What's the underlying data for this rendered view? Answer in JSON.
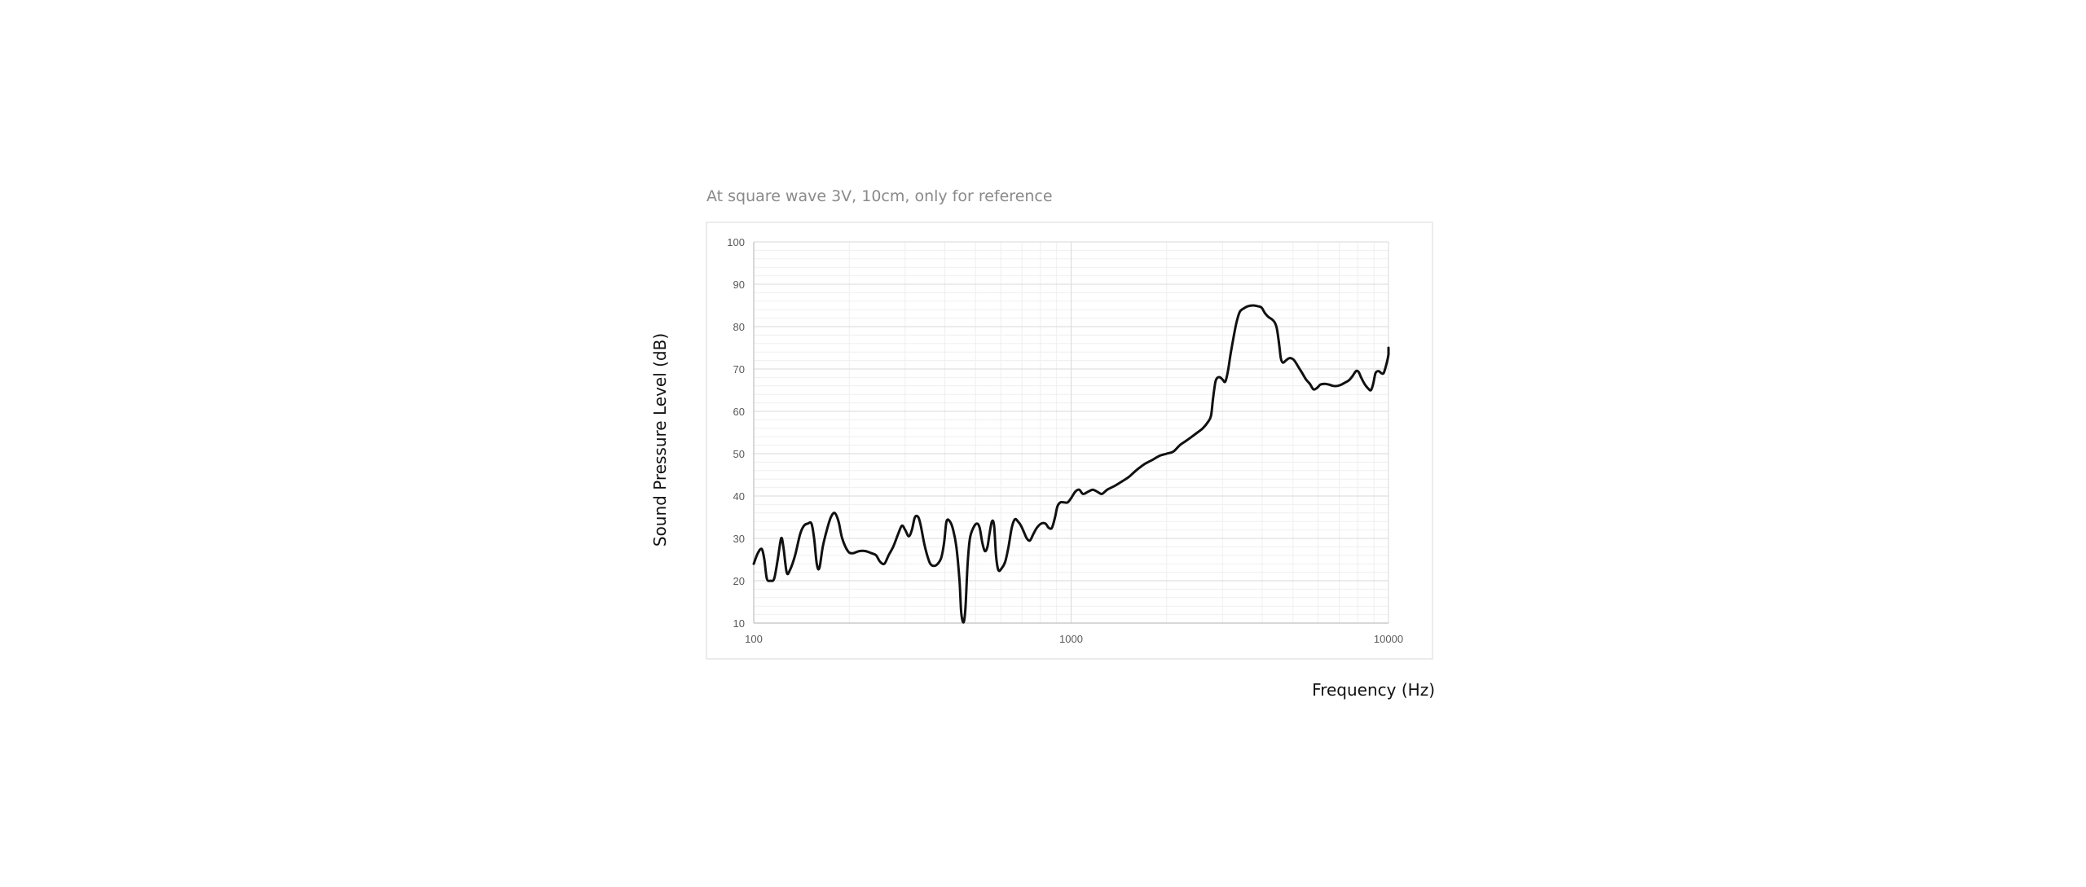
{
  "chart_data": {
    "type": "line",
    "title": "",
    "note": "At square wave 3V, 10cm, only for reference",
    "xlabel": "Frequency (Hz)",
    "ylabel": "Sound Pressure Level (dB)",
    "xscale": "log",
    "xlim": [
      100,
      10000
    ],
    "ylim": [
      10,
      100
    ],
    "x_ticks": [
      100,
      1000,
      10000
    ],
    "x_tick_labels": [
      "100",
      "1000",
      "10000"
    ],
    "y_ticks": [
      10,
      20,
      30,
      40,
      50,
      60,
      70,
      80,
      90,
      100
    ],
    "y_tick_labels": [
      "10",
      "20",
      "30",
      "40",
      "50",
      "60",
      "70",
      "80",
      "90",
      "100"
    ],
    "grid": true,
    "legend": "none",
    "line_color": "#111111",
    "series": [
      {
        "values": [
          [
            100,
            24
          ],
          [
            103,
            26.5
          ],
          [
            106,
            27.5
          ],
          [
            108,
            25
          ],
          [
            110,
            20.5
          ],
          [
            113,
            20
          ],
          [
            116,
            20.5
          ],
          [
            119,
            25
          ],
          [
            122,
            30
          ],
          [
            124,
            28
          ],
          [
            127,
            22
          ],
          [
            130,
            22.5
          ],
          [
            135,
            26
          ],
          [
            140,
            31
          ],
          [
            144,
            33
          ],
          [
            148,
            33.5
          ],
          [
            152,
            33.5
          ],
          [
            155,
            30
          ],
          [
            158,
            24
          ],
          [
            161,
            23
          ],
          [
            165,
            28
          ],
          [
            170,
            32
          ],
          [
            175,
            35
          ],
          [
            180,
            36
          ],
          [
            185,
            34
          ],
          [
            190,
            30
          ],
          [
            198,
            27
          ],
          [
            205,
            26.5
          ],
          [
            215,
            27
          ],
          [
            225,
            27
          ],
          [
            235,
            26.5
          ],
          [
            243,
            26
          ],
          [
            250,
            24.5
          ],
          [
            258,
            24
          ],
          [
            266,
            26
          ],
          [
            275,
            28
          ],
          [
            285,
            31
          ],
          [
            293,
            33
          ],
          [
            300,
            32
          ],
          [
            308,
            30.5
          ],
          [
            315,
            32
          ],
          [
            322,
            35
          ],
          [
            330,
            35
          ],
          [
            336,
            33
          ],
          [
            344,
            29
          ],
          [
            352,
            26
          ],
          [
            360,
            24
          ],
          [
            370,
            23.5
          ],
          [
            380,
            24
          ],
          [
            390,
            25.5
          ],
          [
            398,
            29
          ],
          [
            405,
            34
          ],
          [
            415,
            34
          ],
          [
            425,
            32
          ],
          [
            435,
            28
          ],
          [
            445,
            20
          ],
          [
            450,
            13
          ],
          [
            455,
            10.5
          ],
          [
            460,
            10.5
          ],
          [
            465,
            14
          ],
          [
            472,
            24
          ],
          [
            480,
            30
          ],
          [
            492,
            32.5
          ],
          [
            505,
            33.5
          ],
          [
            515,
            32.5
          ],
          [
            525,
            29
          ],
          [
            535,
            27
          ],
          [
            545,
            28
          ],
          [
            553,
            31
          ],
          [
            563,
            34
          ],
          [
            572,
            33
          ],
          [
            580,
            26
          ],
          [
            590,
            22.5
          ],
          [
            605,
            23
          ],
          [
            620,
            24.5
          ],
          [
            635,
            28
          ],
          [
            650,
            32.5
          ],
          [
            665,
            34.5
          ],
          [
            680,
            34
          ],
          [
            695,
            33
          ],
          [
            710,
            31.5
          ],
          [
            725,
            30
          ],
          [
            742,
            29.5
          ],
          [
            760,
            31
          ],
          [
            780,
            32.5
          ],
          [
            805,
            33.5
          ],
          [
            830,
            33.5
          ],
          [
            850,
            32.5
          ],
          [
            870,
            32.5
          ],
          [
            890,
            35
          ],
          [
            905,
            37.5
          ],
          [
            925,
            38.5
          ],
          [
            950,
            38.5
          ],
          [
            975,
            38.5
          ],
          [
            1000,
            39.5
          ],
          [
            1030,
            41
          ],
          [
            1060,
            41.5
          ],
          [
            1090,
            40.5
          ],
          [
            1130,
            41
          ],
          [
            1170,
            41.5
          ],
          [
            1210,
            41
          ],
          [
            1250,
            40.5
          ],
          [
            1300,
            41.5
          ],
          [
            1380,
            42.5
          ],
          [
            1450,
            43.5
          ],
          [
            1520,
            44.5
          ],
          [
            1600,
            46
          ],
          [
            1700,
            47.5
          ],
          [
            1800,
            48.5
          ],
          [
            1900,
            49.5
          ],
          [
            2000,
            50
          ],
          [
            2100,
            50.5
          ],
          [
            2200,
            52
          ],
          [
            2300,
            53
          ],
          [
            2400,
            54
          ],
          [
            2500,
            55
          ],
          [
            2600,
            56
          ],
          [
            2700,
            57.5
          ],
          [
            2760,
            59
          ],
          [
            2800,
            63
          ],
          [
            2850,
            67
          ],
          [
            2900,
            68
          ],
          [
            2950,
            68
          ],
          [
            3000,
            67.5
          ],
          [
            3060,
            67
          ],
          [
            3120,
            69.5
          ],
          [
            3180,
            73.5
          ],
          [
            3250,
            77.5
          ],
          [
            3320,
            81
          ],
          [
            3400,
            83.5
          ],
          [
            3500,
            84.3
          ],
          [
            3600,
            84.8
          ],
          [
            3750,
            85
          ],
          [
            3880,
            84.8
          ],
          [
            3980,
            84.5
          ],
          [
            4080,
            83.2
          ],
          [
            4180,
            82.3
          ],
          [
            4280,
            81.8
          ],
          [
            4380,
            81
          ],
          [
            4450,
            79.5
          ],
          [
            4520,
            76
          ],
          [
            4580,
            72.5
          ],
          [
            4650,
            71.5
          ],
          [
            4750,
            72
          ],
          [
            4850,
            72.5
          ],
          [
            4950,
            72.5
          ],
          [
            5050,
            72
          ],
          [
            5200,
            70.5
          ],
          [
            5350,
            69
          ],
          [
            5500,
            67.5
          ],
          [
            5650,
            66.5
          ],
          [
            5800,
            65.2
          ],
          [
            5950,
            65.5
          ],
          [
            6100,
            66.3
          ],
          [
            6300,
            66.5
          ],
          [
            6500,
            66.3
          ],
          [
            6700,
            66
          ],
          [
            6900,
            66
          ],
          [
            7100,
            66.3
          ],
          [
            7300,
            66.8
          ],
          [
            7500,
            67.3
          ],
          [
            7700,
            68.3
          ],
          [
            7900,
            69.5
          ],
          [
            8050,
            69.3
          ],
          [
            8200,
            68
          ],
          [
            8400,
            66.5
          ],
          [
            8600,
            65.5
          ],
          [
            8800,
            65
          ],
          [
            8950,
            66.5
          ],
          [
            9100,
            69
          ],
          [
            9300,
            69.5
          ],
          [
            9500,
            69
          ],
          [
            9650,
            69
          ],
          [
            9800,
            70.5
          ],
          [
            9950,
            72.5
          ],
          [
            10100,
            73.5
          ],
          [
            10250,
            74
          ],
          [
            10400,
            75
          ]
        ]
      }
    ]
  }
}
